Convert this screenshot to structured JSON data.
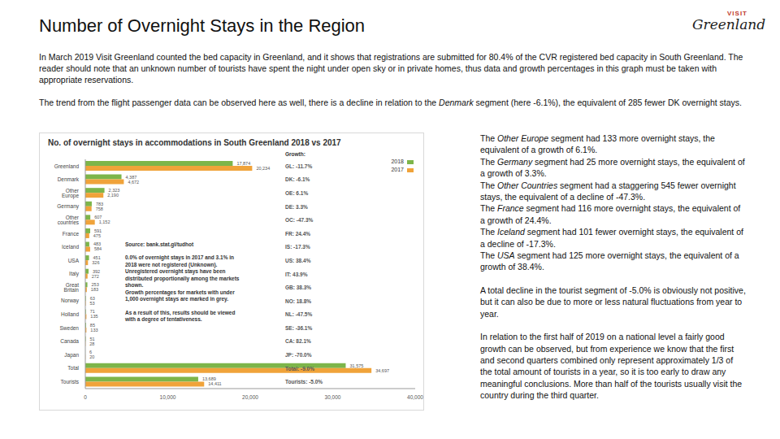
{
  "title": "Number of Overnight Stays in the Region",
  "logo": [
    "VISIT",
    "Greenland"
  ],
  "intro": [
    {
      "text": "In March 2019 Visit Greenland counted the bed capacity in Greenland, and it shows that registrations are submitted for 80.4% of the CVR registered bed capacity in South Greenland. The reader should note that an unknown number of tourists have spent the night under open sky or in private homes, thus data and growth percentages in this graph must be taken with appropriate reservations."
    },
    {
      "pre": "The trend from the flight passenger data can be observed here as well, there is a decline in relation to the ",
      "segment": "Denmark",
      "post": " segment (here -6.1%), the equivalent of 285 fewer DK overnight stays."
    }
  ],
  "chart_data": {
    "type": "bar",
    "orientation": "horizontal",
    "title": "No. of overnight stays in accommodations in South Greenland 2018 vs 2017",
    "categories": [
      "Greenland",
      "Denmark",
      "Other Europe",
      "Germany",
      "Other countries",
      "France",
      "Iceland",
      "USA",
      "Italy",
      "Great Britain",
      "Norway",
      "Holland",
      "Sweden",
      "Canada",
      "Japan",
      "Total",
      "Tourists"
    ],
    "series": [
      {
        "name": "2018",
        "color": "#7db54a",
        "values": [
          17874,
          4387,
          2323,
          783,
          607,
          591,
          483,
          451,
          392,
          253,
          63,
          71,
          85,
          51,
          6,
          31575,
          13689
        ],
        "value_labels": [
          "17,874",
          "4,387",
          "2,323",
          "783",
          "607",
          "591",
          "483",
          "451",
          "392",
          "253",
          "63",
          "71",
          "85",
          "51",
          "6",
          "31,575",
          "13,689"
        ]
      },
      {
        "name": "2017",
        "color": "#f0a33a",
        "values": [
          20234,
          4672,
          2190,
          758,
          1152,
          475,
          584,
          326,
          272,
          183,
          53,
          135,
          133,
          28,
          20,
          34697,
          14411
        ],
        "value_labels": [
          "20,234",
          "4,672",
          "2,190",
          "758",
          "1,152",
          "475",
          "584",
          "326",
          "272",
          "183",
          "53",
          "135",
          "133",
          "28",
          "20",
          "34,697",
          "14,411"
        ]
      }
    ],
    "xlim": [
      0,
      40000
    ],
    "xticks": [
      0,
      {
        "value": 10000,
        "label": "10,000"
      },
      {
        "value": 20000,
        "label": "20,000"
      },
      {
        "value": 30000,
        "label": "30,000"
      },
      {
        "value": 40000,
        "label": "40,000"
      }
    ],
    "data_labels": true,
    "grid": false,
    "legend": "top-right",
    "growth_header": "Growth:",
    "growth_labels": [
      "GL: -11.7%",
      "DK: -6.1%",
      "OE: 6.1%",
      "DE: 3.3%",
      "OC: -47.3%",
      "FR: 24.4%",
      "IS: -17.3%",
      "US: 38.4%",
      "IT: 43.9%",
      "GB: 38.3%",
      "NO: 18.8%",
      "NL: -47.5%",
      "SE: -36.1%",
      "CA: 82.1%",
      "JP: -70.0%",
      "Total: -9.0%",
      "Tourists: -5.0%"
    ],
    "source": "Source: bank.stat.gl/tudhot",
    "note": [
      [
        "0.0% of overnight stays in 2017 and 3.1% in",
        "2018 were not registered (Unknown).",
        "Unregistered overnight stays have been",
        "distributed proportionally among the markets",
        "shown.",
        "Growth percentages for markets with under",
        "1,000 overnight stays are marked in grey."
      ],
      [
        "As a result of this, results should be viewed",
        "with a degree of tentativeness."
      ]
    ]
  },
  "side_text": {
    "segments": [
      {
        "pre": "The ",
        "segment": "Other Europe",
        "post": " segment had 133 more overnight stays, the equivalent of a growth of 6.1%."
      },
      {
        "pre": "The ",
        "segment": "Germany",
        "post": " segment had 25 more overnight stays, the equivalent of a growth of 3.3%."
      },
      {
        "pre": "The ",
        "segment": "Other Countries",
        "post": " segment had a staggering 545 fewer overnight stays, the equivalent of a decline of -47.3%."
      },
      {
        "pre": "The ",
        "segment": "France",
        "post": " segment had 116 more overnight stays, the equivalent of a growth of 24.4%."
      },
      {
        "pre": "The ",
        "segment": "Iceland",
        "post": " segment had 101 fewer overnight stays, the equivalent of a decline of -17.3%."
      },
      {
        "pre": "The ",
        "segment": "USA",
        "post": " segment had 125 more overnight stays, the equivalent of a growth of 38.4%."
      }
    ],
    "paragraphs": [
      "A total decline in the tourist segment of -5.0% is obviously not positive, but it can also be due to more or less natural fluctuations from year to year.",
      "In relation to the first half of 2019 on a national level a fairly good growth can be observed, but from experience we know that the first and second quarters combined only represent approximately 1/3 of the total amount of tourists in a year, so it is too early to draw any meaningful conclusions. More than half of the tourists usually visit the country during the third quarter."
    ]
  }
}
